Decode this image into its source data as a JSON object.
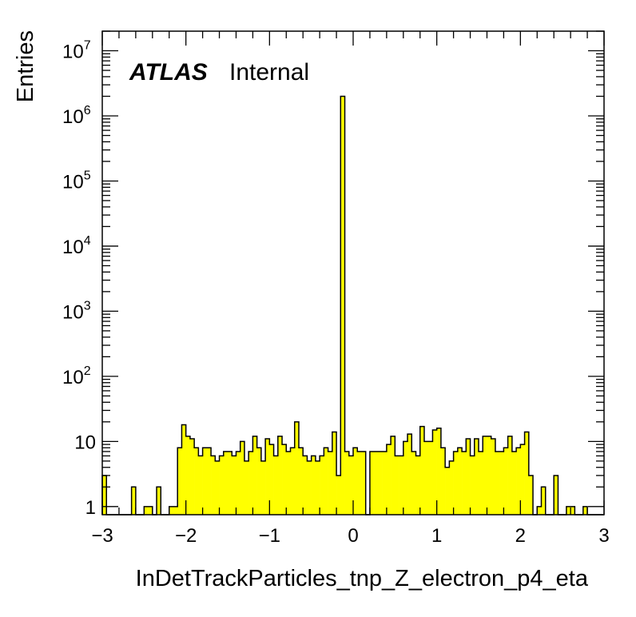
{
  "chart_data": {
    "type": "histogram",
    "title": "",
    "xlabel": "InDetTrackParticles_tnp_Z_electron_p4_eta",
    "ylabel": "Entries",
    "label": {
      "atlas": "ATLAS",
      "status": "Internal"
    },
    "xlim": [
      -3,
      3
    ],
    "ylim": [
      0.75,
      20000000
    ],
    "yscale": "log",
    "x_ticks": [
      "−3",
      "−2",
      "−1",
      "0",
      "1",
      "2",
      "3"
    ],
    "y_ticks": [
      {
        "base": "1",
        "exp": ""
      },
      {
        "base": "10",
        "exp": ""
      },
      {
        "base": "10",
        "exp": "2"
      },
      {
        "base": "10",
        "exp": "3"
      },
      {
        "base": "10",
        "exp": "4"
      },
      {
        "base": "10",
        "exp": "5"
      },
      {
        "base": "10",
        "exp": "6"
      },
      {
        "base": "10",
        "exp": "7"
      }
    ],
    "bins": 120,
    "fill_color": "#ffff00",
    "line_color": "#000000",
    "values": [
      3,
      0,
      0,
      0,
      0,
      0,
      0,
      2,
      0,
      0,
      1,
      1,
      0,
      2,
      0,
      0,
      1,
      1,
      8,
      18,
      12,
      11,
      8,
      6,
      8,
      8,
      6,
      5,
      6,
      7,
      7,
      6,
      7,
      10,
      5,
      7,
      12,
      8,
      5,
      11,
      9,
      6,
      12,
      9,
      7,
      8,
      20,
      8,
      6,
      5,
      6,
      5,
      6,
      8,
      7,
      14,
      3,
      2000000,
      7,
      6,
      8,
      7,
      7,
      0,
      7,
      7,
      7,
      7,
      9,
      12,
      6,
      6,
      10,
      13,
      7,
      6,
      17,
      10,
      10,
      15,
      16,
      8,
      4,
      5,
      7,
      8,
      7,
      11,
      6,
      11,
      7,
      12,
      12,
      11,
      7,
      7,
      8,
      12,
      7,
      8,
      9,
      14,
      3,
      0,
      1,
      2,
      0,
      0,
      3,
      0,
      0,
      1,
      1,
      0,
      0,
      1,
      0,
      0,
      0,
      0
    ]
  }
}
